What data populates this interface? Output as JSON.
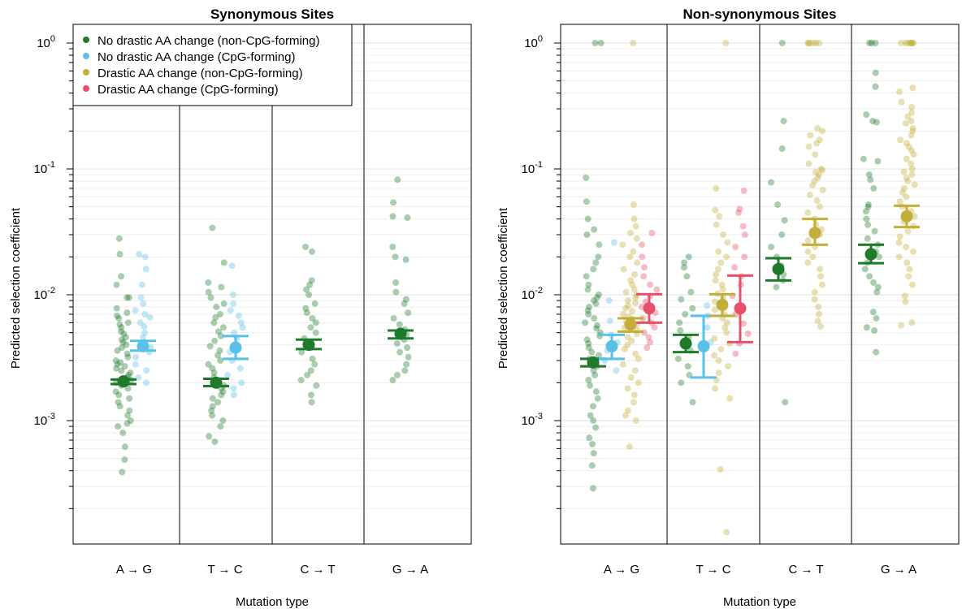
{
  "chart_data": {
    "type": "scatter",
    "y_scale": "log",
    "ylim": [
      0.0001,
      1
    ],
    "ylabel": "Predicted selection coefficient",
    "xlabel": "Mutation type",
    "y_ticks": [
      {
        "value": 1,
        "label": "10^0"
      },
      {
        "value": 0.1,
        "label": "10^-1"
      },
      {
        "value": 0.01,
        "label": "10^-2"
      },
      {
        "value": 0.001,
        "label": "10^-3"
      }
    ],
    "grid": true,
    "categories": [
      "A → G",
      "T → C",
      "C → T",
      "G → A"
    ],
    "legend_position": "top-left",
    "legend": [
      {
        "name": "No drastic AA change (non-CpG-forming)",
        "color": "#1f7a2c"
      },
      {
        "name": "No drastic AA change (CpG-forming)",
        "color": "#5bc0e8"
      },
      {
        "name": "Drastic AA change (non-CpG-forming)",
        "color": "#c2ae38"
      },
      {
        "name": "Drastic AA change (CpG-forming)",
        "color": "#e8506a"
      }
    ],
    "panels": [
      {
        "title": "Synonymous Sites",
        "groups": [
          {
            "category": "A → G",
            "series": "No drastic AA change (non-CpG-forming)",
            "mean": 0.00205,
            "ci": [
              0.00195,
              0.00212
            ],
            "points": [
              0.028,
              0.021,
              0.014,
              0.012,
              0.0095,
              0.0095,
              0.0078,
              0.0072,
              0.0068,
              0.0065,
              0.006,
              0.0058,
              0.0055,
              0.0051,
              0.0049,
              0.0046,
              0.0044,
              0.0042,
              0.004,
              0.0038,
              0.0036,
              0.0034,
              0.0032,
              0.003,
              0.0029,
              0.0028,
              0.0027,
              0.0026,
              0.0025,
              0.0024,
              0.0023,
              0.0022,
              0.0021,
              0.002,
              0.0019,
              0.0018,
              0.0017,
              0.0016,
              0.0015,
              0.0014,
              0.0013,
              0.0012,
              0.0011,
              0.001,
              0.00095,
              0.0009,
              0.0008,
              0.00062,
              0.00049,
              0.00039
            ]
          },
          {
            "category": "A → G",
            "series": "No drastic AA change (CpG-forming)",
            "mean": 0.0039,
            "ci": [
              0.0036,
              0.0043
            ],
            "points": [
              0.021,
              0.02,
              0.016,
              0.012,
              0.0095,
              0.0085,
              0.0075,
              0.007,
              0.0066,
              0.006,
              0.0056,
              0.005,
              0.0046,
              0.0042,
              0.0038,
              0.0035,
              0.0032,
              0.0028,
              0.0025,
              0.0022,
              0.002
            ]
          },
          {
            "category": "T → C",
            "series": "No drastic AA change (non-CpG-forming)",
            "mean": 0.002,
            "ci": [
              0.00188,
              0.00215
            ],
            "points": [
              0.034,
              0.018,
              0.0125,
              0.0115,
              0.0105,
              0.0095,
              0.0085,
              0.008,
              0.007,
              0.0066,
              0.006,
              0.0055,
              0.0051,
              0.0047,
              0.0043,
              0.0039,
              0.0036,
              0.0033,
              0.003,
              0.0028,
              0.0026,
              0.0024,
              0.0022,
              0.002,
              0.0019,
              0.0018,
              0.0017,
              0.0016,
              0.0015,
              0.0014,
              0.0013,
              0.0012,
              0.0011,
              0.001,
              0.0009,
              0.00075,
              0.00068
            ]
          },
          {
            "category": "T → C",
            "series": "No drastic AA change (CpG-forming)",
            "mean": 0.0038,
            "ci": [
              0.0031,
              0.0047
            ],
            "points": [
              0.017,
              0.01,
              0.0085,
              0.0075,
              0.0068,
              0.006,
              0.0055,
              0.005,
              0.0045,
              0.004,
              0.0035,
              0.003,
              0.0026,
              0.0023,
              0.002,
              0.0018,
              0.0016
            ]
          },
          {
            "category": "C → T",
            "series": "No drastic AA change (non-CpG-forming)",
            "mean": 0.004,
            "ci": [
              0.0037,
              0.0044
            ],
            "points": [
              0.024,
              0.022,
              0.013,
              0.012,
              0.011,
              0.01,
              0.0085,
              0.0078,
              0.0072,
              0.0065,
              0.006,
              0.0055,
              0.005,
              0.0045,
              0.0041,
              0.0038,
              0.0035,
              0.0031,
              0.0028,
              0.0025,
              0.0023,
              0.0021,
              0.0019,
              0.0016,
              0.0014
            ]
          },
          {
            "category": "G → A",
            "series": "No drastic AA change (non-CpG-forming)",
            "mean": 0.0049,
            "ci": [
              0.0045,
              0.0052
            ],
            "points": [
              0.082,
              0.054,
              0.042,
              0.041,
              0.024,
              0.02,
              0.019,
              0.0125,
              0.0105,
              0.0092,
              0.0085,
              0.0072,
              0.0065,
              0.0058,
              0.0053,
              0.0048,
              0.0044,
              0.0041,
              0.0038,
              0.0035,
              0.0032,
              0.0028,
              0.0025,
              0.0023,
              0.0021
            ]
          }
        ]
      },
      {
        "title": "Non-synonymous Sites",
        "groups": [
          {
            "category": "A → G",
            "series": "No drastic AA change (non-CpG-forming)",
            "mean": 0.0029,
            "ci": [
              0.0027,
              0.0031
            ],
            "points": [
              1,
              1,
              0.085,
              0.055,
              0.04,
              0.033,
              0.03,
              0.025,
              0.02,
              0.018,
              0.016,
              0.014,
              0.012,
              0.011,
              0.01,
              0.0095,
              0.009,
              0.0085,
              0.008,
              0.0075,
              0.007,
              0.0065,
              0.006,
              0.0057,
              0.0054,
              0.005,
              0.0047,
              0.0044,
              0.0041,
              0.0038,
              0.0035,
              0.0033,
              0.0031,
              0.0029,
              0.0027,
              0.0025,
              0.0023,
              0.0021,
              0.0019,
              0.0017,
              0.0015,
              0.0013,
              0.0011,
              0.001,
              0.00088,
              0.00073,
              0.00065,
              0.00055,
              0.00044,
              0.00029
            ]
          },
          {
            "category": "A → G",
            "series": "No drastic AA change (CpG-forming)",
            "mean": 0.0039,
            "ci": [
              0.0031,
              0.0048
            ],
            "points": [
              0.026,
              0.009,
              0.0062,
              0.0048,
              0.0042,
              0.0036,
              0.003,
              0.0025
            ]
          },
          {
            "category": "A → G",
            "series": "Drastic AA change (non-CpG-forming)",
            "mean": 0.0058,
            "ci": [
              0.0051,
              0.0065
            ],
            "points": [
              1,
              0.052,
              0.04,
              0.035,
              0.031,
              0.028,
              0.025,
              0.022,
              0.02,
              0.018,
              0.016,
              0.0145,
              0.013,
              0.012,
              0.011,
              0.0105,
              0.01,
              0.0095,
              0.009,
              0.0086,
              0.0082,
              0.0078,
              0.0074,
              0.007,
              0.0067,
              0.0064,
              0.0061,
              0.0058,
              0.0055,
              0.0052,
              0.0049,
              0.0046,
              0.0043,
              0.004,
              0.0037,
              0.0034,
              0.0031,
              0.0028,
              0.0025,
              0.0022,
              0.002,
              0.0018,
              0.0016,
              0.0014,
              0.0012,
              0.0011,
              0.001,
              0.00062
            ]
          },
          {
            "category": "A → G",
            "series": "Drastic AA change (CpG-forming)",
            "mean": 0.0078,
            "ci": [
              0.006,
              0.0101
            ],
            "points": [
              0.031,
              0.025,
              0.02,
              0.0165,
              0.014,
              0.012,
              0.011,
              0.0098,
              0.0088,
              0.008,
              0.0072,
              0.0065,
              0.006,
              0.0055,
              0.005,
              0.0046,
              0.0042,
              0.0038
            ]
          },
          {
            "category": "T → C",
            "series": "No drastic AA change (non-CpG-forming)",
            "mean": 0.0041,
            "ci": [
              0.0035,
              0.0048
            ],
            "points": [
              0.02,
              0.018,
              0.0165,
              0.014,
              0.0105,
              0.0092,
              0.0078,
              0.007,
              0.006,
              0.0052,
              0.0046,
              0.004,
              0.0036,
              0.0031,
              0.0027,
              0.0023,
              0.002,
              0.0014
            ]
          },
          {
            "category": "T → C",
            "series": "No drastic AA change (CpG-forming)",
            "mean": 0.0039,
            "ci": [
              0.0022,
              0.0068
            ],
            "points": [
              0.0082,
              0.0068,
              0.0055,
              0.0042
            ]
          },
          {
            "category": "T → C",
            "series": "Drastic AA change (non-CpG-forming)",
            "mean": 0.0083,
            "ci": [
              0.0068,
              0.0101
            ],
            "points": [
              1,
              0.07,
              0.047,
              0.042,
              0.036,
              0.03,
              0.026,
              0.022,
              0.02,
              0.018,
              0.016,
              0.0145,
              0.013,
              0.012,
              0.011,
              0.0102,
              0.0095,
              0.0088,
              0.0082,
              0.0076,
              0.007,
              0.0065,
              0.006,
              0.0055,
              0.005,
              0.0045,
              0.0041,
              0.0037,
              0.0033,
              0.003,
              0.0027,
              0.0024,
              0.0021,
              0.0018,
              0.0015,
              0.00041,
              0.00013
            ]
          },
          {
            "category": "T → C",
            "series": "Drastic AA change (CpG-forming)",
            "mean": 0.0078,
            "ci": [
              0.0042,
              0.0142
            ],
            "points": [
              0.067,
              0.048,
              0.045,
              0.035,
              0.03,
              0.024,
              0.02,
              0.0165,
              0.014,
              0.012,
              0.0098,
              0.0082,
              0.007,
              0.0059,
              0.0049,
              0.0041,
              0.0034
            ]
          },
          {
            "category": "C → T",
            "series": "No drastic AA change (non-CpG-forming)",
            "mean": 0.016,
            "ci": [
              0.013,
              0.0195
            ],
            "points": [
              1,
              0.24,
              0.145,
              0.078,
              0.052,
              0.039,
              0.03,
              0.024,
              0.02,
              0.017,
              0.0145,
              0.013,
              0.0115,
              0.0014
            ]
          },
          {
            "category": "C → T",
            "series": "Drastic AA change (non-CpG-forming)",
            "mean": 0.031,
            "ci": [
              0.025,
              0.04
            ],
            "points": [
              1,
              1,
              1,
              1,
              1,
              1,
              0.21,
              0.2,
              0.185,
              0.17,
              0.16,
              0.15,
              0.13,
              0.11,
              0.1,
              0.098,
              0.094,
              0.09,
              0.085,
              0.08,
              0.074,
              0.068,
              0.062,
              0.056,
              0.05,
              0.045,
              0.04,
              0.036,
              0.033,
              0.03,
              0.027,
              0.024,
              0.022,
              0.02,
              0.018,
              0.016,
              0.014,
              0.012,
              0.0105,
              0.0092,
              0.008,
              0.007,
              0.0062,
              0.0056
            ]
          },
          {
            "category": "G → A",
            "series": "No drastic AA change (non-CpG-forming)",
            "mean": 0.021,
            "ci": [
              0.0178,
              0.025
            ],
            "points": [
              1,
              1,
              1,
              0.58,
              0.45,
              0.27,
              0.24,
              0.235,
              0.12,
              0.115,
              0.09,
              0.082,
              0.07,
              0.052,
              0.05,
              0.046,
              0.04,
              0.036,
              0.032,
              0.028,
              0.025,
              0.022,
              0.02,
              0.018,
              0.016,
              0.014,
              0.0125,
              0.0115,
              0.0105,
              0.0073,
              0.0065,
              0.0055,
              0.0052,
              0.0035
            ]
          },
          {
            "category": "G → A",
            "series": "Drastic AA change (non-CpG-forming)",
            "mean": 0.042,
            "ci": [
              0.0345,
              0.051
            ],
            "points": [
              1,
              1,
              1,
              1,
              1,
              1,
              1,
              1,
              0.44,
              0.41,
              0.34,
              0.31,
              0.28,
              0.26,
              0.24,
              0.23,
              0.21,
              0.2,
              0.185,
              0.17,
              0.16,
              0.15,
              0.14,
              0.13,
              0.12,
              0.11,
              0.1,
              0.095,
              0.09,
              0.085,
              0.08,
              0.075,
              0.07,
              0.065,
              0.06,
              0.055,
              0.05,
              0.046,
              0.042,
              0.038,
              0.035,
              0.032,
              0.029,
              0.026,
              0.024,
              0.022,
              0.02,
              0.018,
              0.016,
              0.014,
              0.012,
              0.0098,
              0.0088,
              0.006,
              0.0057
            ]
          }
        ]
      }
    ]
  }
}
